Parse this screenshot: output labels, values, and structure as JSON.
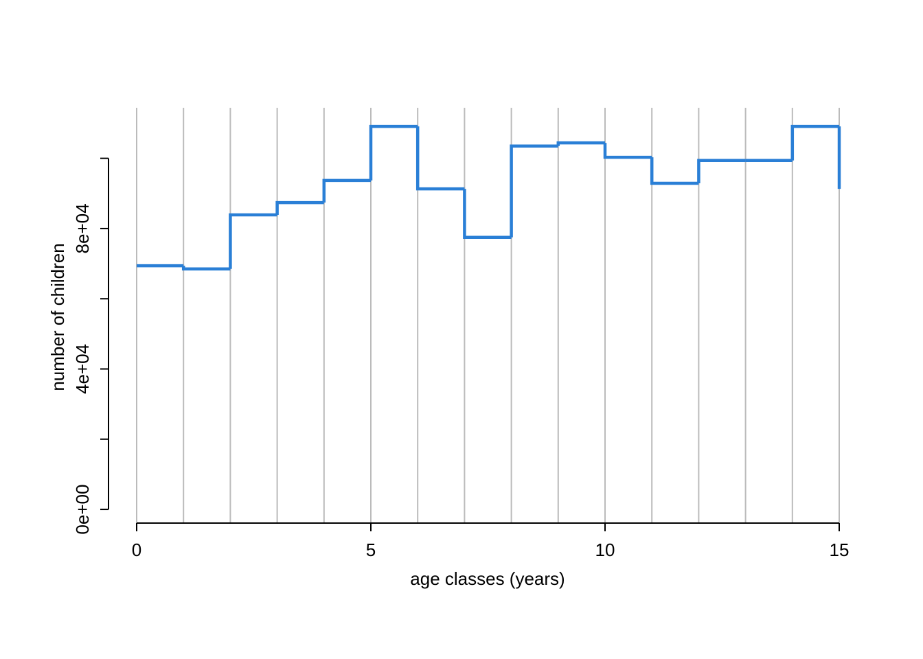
{
  "chart_data": {
    "type": "line",
    "step": "post",
    "x_label": "age classes (years)",
    "y_label": "number of children",
    "x": [
      0,
      1,
      2,
      3,
      4,
      5,
      6,
      7,
      8,
      9,
      10,
      11,
      12,
      13,
      14,
      15
    ],
    "series": [
      {
        "color": "#2a7fd6",
        "values": [
          69400,
          68500,
          83900,
          87400,
          93700,
          109100,
          91300,
          77500,
          103500,
          104400,
          100300,
          92900,
          99400,
          99400,
          109100,
          91300
        ]
      }
    ],
    "xlim": [
      0,
      15
    ],
    "xticks": [
      0,
      5,
      10,
      15
    ],
    "ylim": [
      -3900,
      114400
    ],
    "yticks": [
      {
        "value": 0,
        "label": "0e+00"
      },
      {
        "value": 40000,
        "label": "4e+04"
      },
      {
        "value": 80000,
        "label": "8e+04"
      }
    ],
    "yticks_unlabeled": [
      20000,
      60000,
      100000
    ],
    "grid": true,
    "grid_color": "#bbbbbb"
  }
}
